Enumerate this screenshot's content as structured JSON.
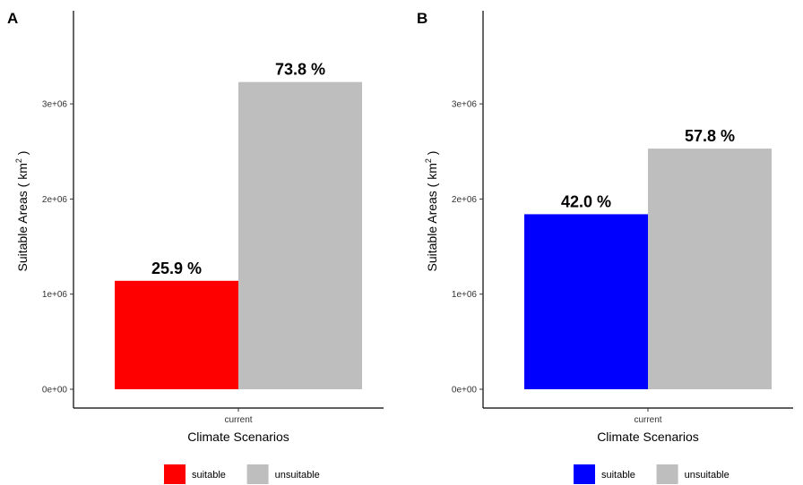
{
  "chart_data": [
    {
      "panel": "A",
      "type": "bar",
      "categories": [
        "current"
      ],
      "series": [
        {
          "name": "suitable",
          "color": "#ff0000",
          "values": [
            1140000
          ],
          "label": "25.9 %"
        },
        {
          "name": "unsuitable",
          "color": "#bebebe",
          "values": [
            3230000
          ],
          "label": "73.8 %"
        }
      ],
      "xlabel": "Climate Scenarios",
      "ylabel": "Suitable Areas ( km",
      "ylabel_sup": "2",
      "ylabel_end": " )",
      "ylim": [
        0,
        3950000
      ],
      "yticks": [
        0,
        1000000,
        2000000,
        3000000
      ],
      "ytick_labels": [
        "0e+00",
        "1e+06",
        "2e+06",
        "3e+06"
      ],
      "grid": false,
      "legend": {
        "placement": "bottom",
        "items": [
          {
            "label": "suitable",
            "color": "#ff0000"
          },
          {
            "label": "unsuitable",
            "color": "#bebebe"
          }
        ]
      }
    },
    {
      "panel": "B",
      "type": "bar",
      "categories": [
        "current"
      ],
      "series": [
        {
          "name": "suitable",
          "color": "#0000ff",
          "values": [
            1840000
          ],
          "label": "42.0 %"
        },
        {
          "name": "unsuitable",
          "color": "#bebebe",
          "values": [
            2530000
          ],
          "label": "57.8 %"
        }
      ],
      "xlabel": "Climate Scenarios",
      "ylabel": "Suitable Areas ( km",
      "ylabel_sup": "2",
      "ylabel_end": " )",
      "ylim": [
        0,
        3950000
      ],
      "yticks": [
        0,
        1000000,
        2000000,
        3000000
      ],
      "ytick_labels": [
        "0e+00",
        "1e+06",
        "2e+06",
        "3e+06"
      ],
      "grid": false,
      "legend": {
        "placement": "bottom",
        "items": [
          {
            "label": "suitable",
            "color": "#0000ff"
          },
          {
            "label": "unsuitable",
            "color": "#bebebe"
          }
        ]
      }
    }
  ]
}
